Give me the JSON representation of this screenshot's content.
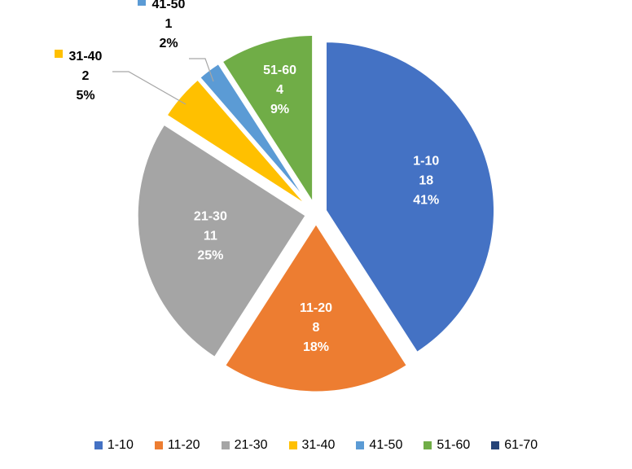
{
  "chart_data": {
    "type": "pie",
    "title": "",
    "legend_position": "bottom",
    "slices": [
      {
        "label": "1-10",
        "value": 18,
        "percent": "41%",
        "color": "#4472C4"
      },
      {
        "label": "11-20",
        "value": 8,
        "percent": "18%",
        "color": "#ED7D31"
      },
      {
        "label": "21-30",
        "value": 11,
        "percent": "25%",
        "color": "#A5A5A5"
      },
      {
        "label": "31-40",
        "value": 2,
        "percent": "5%",
        "color": "#FFC000"
      },
      {
        "label": "41-50",
        "value": 1,
        "percent": "2%",
        "color": "#5B9BD5"
      },
      {
        "label": "51-60",
        "value": 4,
        "percent": "9%",
        "color": "#70AD47"
      },
      {
        "label": "61-70",
        "value": 0,
        "percent": "0%",
        "color": "#264478"
      }
    ],
    "legend": [
      "1-10",
      "11-20",
      "21-30",
      "31-40",
      "41-50",
      "51-60",
      "61-70"
    ]
  }
}
